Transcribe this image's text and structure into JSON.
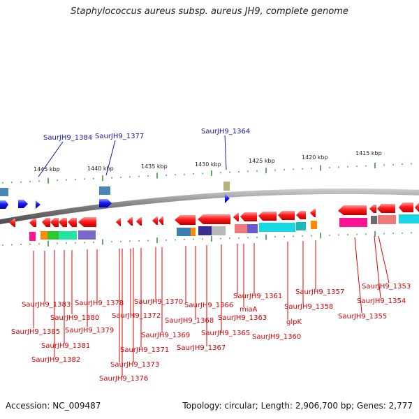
{
  "title": "Staphylococcus aureus subsp. aureus JH9, complete genome",
  "accession": "Accession: NC_009487",
  "summary": "Topology: circular; Length: 2,906,700 bp; Genes: 2,777",
  "scale_labels": [
    "1445 kbp",
    "1440 kbp",
    "1435 kbp",
    "1430 kbp",
    "1425 kbp",
    "1420 kbp",
    "1415 kbp"
  ],
  "top_labels": [
    "SaurJH9_1384",
    "SaurJH9_1377",
    "SaurJH9_1364"
  ],
  "bottom_labels": [
    "SaurJH9_1383",
    "SaurJH9_1385",
    "SaurJH9_1380",
    "SaurJH9_1381",
    "SaurJH9_1382",
    "SaurJH9_1378",
    "SaurJH9_1379",
    "SaurJH9_1372",
    "SaurJH9_1370",
    "SaurJH9_1371",
    "SaurJH9_1373",
    "SaurJH9_1376",
    "SaurJH9_1369",
    "SaurJH9_1366",
    "SaurJH9_1368",
    "SaurJH9_1367",
    "SaurJH9_1365",
    "SaurJH9_1363",
    "SaurJH9_1361",
    "miaA",
    "SaurJH9_1360",
    "glpK",
    "SaurJH9_1358",
    "SaurJH9_1357",
    "SaurJH9_1353",
    "SaurJH9_1354",
    "SaurJH9_1355"
  ],
  "colors": {
    "forward_gene": "#1a1aee",
    "reverse_gene": "#ee0000",
    "genome_backbone": "#8c8c8c",
    "tick": "#2e8b2e",
    "leader_red": "#dd0000",
    "leader_blue": "#1515b0"
  }
}
